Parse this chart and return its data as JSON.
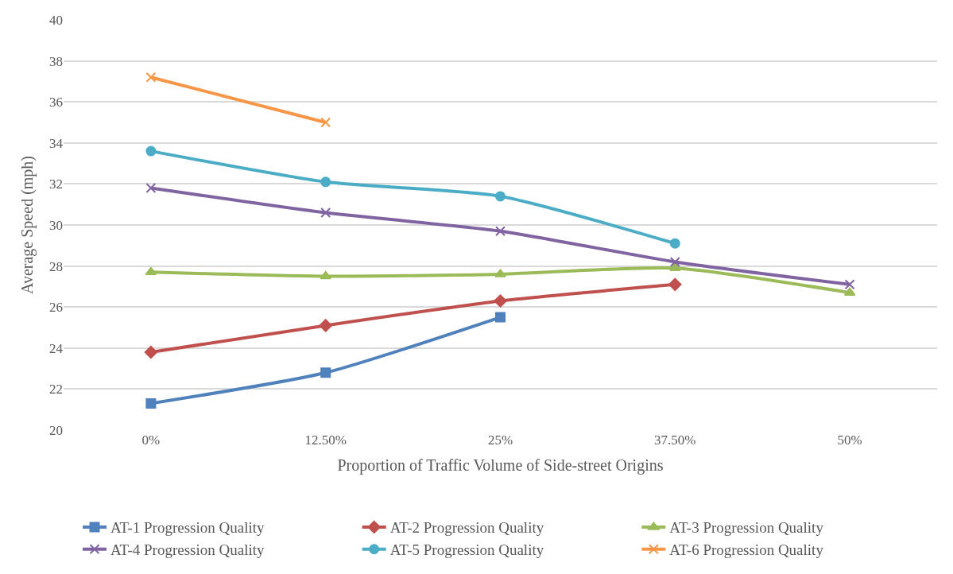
{
  "chart_data": {
    "type": "line",
    "xlabel": "Proportion of Traffic Volume of Side-street Origins",
    "ylabel": "Average Speed (mph)",
    "categories": [
      "0%",
      "12.50%",
      "25%",
      "37.50%",
      "50%"
    ],
    "series": [
      {
        "name": "AT-1 Progression Quality",
        "color": "#4f81bd",
        "marker": "square",
        "values": [
          21.3,
          22.8,
          25.5,
          null,
          null
        ]
      },
      {
        "name": "AT-2 Progression Quality",
        "color": "#c0504d",
        "marker": "diamond",
        "values": [
          23.8,
          25.1,
          26.3,
          27.1,
          null
        ]
      },
      {
        "name": "AT-3 Progression Quality",
        "color": "#9bbb59",
        "marker": "triangle",
        "values": [
          27.7,
          27.5,
          27.6,
          27.9,
          26.7
        ]
      },
      {
        "name": "AT-4 Progression Quality",
        "color": "#8064a2",
        "marker": "cross",
        "values": [
          31.8,
          30.6,
          29.7,
          28.2,
          27.1
        ]
      },
      {
        "name": "AT-5 Progression Quality",
        "color": "#4bacc6",
        "marker": "circle",
        "values": [
          33.6,
          32.1,
          31.4,
          29.1,
          null
        ]
      },
      {
        "name": "AT-6 Progression Quality",
        "color": "#f79646",
        "marker": "cross",
        "values": [
          37.2,
          35.0,
          null,
          null,
          null
        ]
      }
    ],
    "ylim": [
      20,
      40
    ],
    "yticks": [
      20,
      22,
      24,
      26,
      28,
      30,
      32,
      34,
      36,
      38,
      40
    ],
    "grid": "y",
    "legend": "bottom"
  }
}
